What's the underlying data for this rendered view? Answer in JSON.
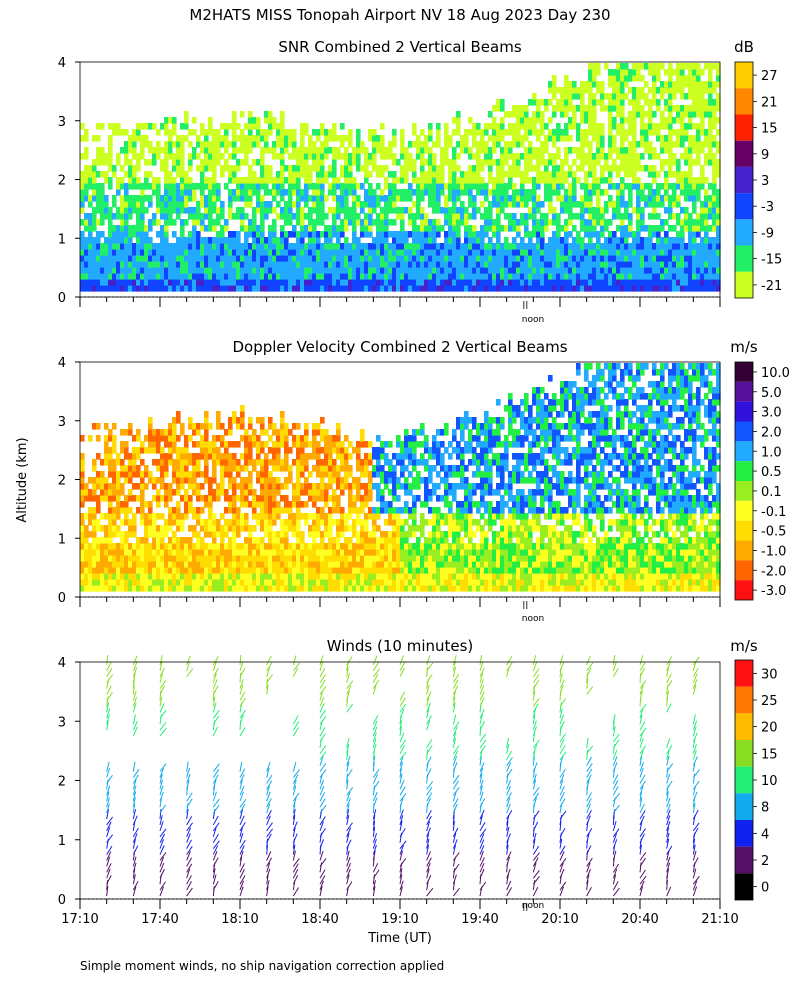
{
  "figure_title": "M2HATS MISS Tonopah Airport NV  18 Aug 2023 Day 230",
  "shared_ylabel": "Altitude (km)",
  "noon_label": "noon",
  "footer": "Simple moment winds, no ship navigation correction applied",
  "chart_data": [
    {
      "type": "heatmap",
      "title": "SNR Combined 2 Vertical Beams",
      "xlabel": "",
      "ylabel": "Altitude (km)",
      "xlim": [
        "17:10",
        "21:10"
      ],
      "ylim": [
        0,
        4
      ],
      "yticks": [
        0,
        1,
        2,
        3,
        4
      ],
      "noon_marker": "19:57",
      "colorbar": {
        "units": "dB",
        "labels": [
          "27",
          "21",
          "15",
          "9",
          "3",
          "-3",
          "-9",
          "-15",
          "-21"
        ],
        "colors": [
          "#ffcc00",
          "#ff8800",
          "#ff2200",
          "#660066",
          "#4422cc",
          "#1144ff",
          "#22aaff",
          "#22ee66",
          "#ccff22"
        ]
      },
      "description_bands": [
        {
          "altitude_km": [
            0.1,
            0.4
          ],
          "value_db": -3
        },
        {
          "altitude_km": [
            0.4,
            1.2
          ],
          "value_db": -9
        },
        {
          "altitude_km": [
            1.2,
            2.0
          ],
          "value_db": -15
        },
        {
          "altitude_km": [
            2.0,
            4.0
          ],
          "value_db": -21
        }
      ]
    },
    {
      "type": "heatmap",
      "title": "Doppler Velocity Combined 2 Vertical Beams",
      "xlabel": "",
      "ylabel": "Altitude (km)",
      "xlim": [
        "17:10",
        "21:10"
      ],
      "ylim": [
        0,
        4
      ],
      "yticks": [
        0,
        1,
        2,
        3,
        4
      ],
      "noon_marker": "19:57",
      "colorbar": {
        "units": "m/s",
        "labels": [
          "10.0",
          "5.0",
          "3.0",
          "2.0",
          "1.0",
          "0.5",
          "0.1",
          "-0.1",
          "-0.5",
          "-1.0",
          "-2.0",
          "-3.0"
        ],
        "colors": [
          "#330033",
          "#551199",
          "#3311dd",
          "#1155ff",
          "#22aaff",
          "#22ee44",
          "#99ee22",
          "#ffff22",
          "#ffdd00",
          "#ffaa00",
          "#ff6600",
          "#ff1111"
        ]
      }
    },
    {
      "type": "scatter",
      "title": "Winds (10 minutes)",
      "xlabel": "Time (UT)",
      "ylabel": "Altitude (km)",
      "xlim": [
        "17:10",
        "21:10"
      ],
      "ylim": [
        0,
        4
      ],
      "xticks": [
        "17:10",
        "17:40",
        "18:10",
        "18:40",
        "19:10",
        "19:40",
        "20:10",
        "20:40",
        "21:10"
      ],
      "yticks": [
        0,
        1,
        2,
        3,
        4
      ],
      "noon_marker": "19:57",
      "profile_times": [
        "17:20",
        "17:30",
        "17:40",
        "17:50",
        "18:00",
        "18:10",
        "18:20",
        "18:30",
        "18:40",
        "18:50",
        "19:00",
        "19:10",
        "19:20",
        "19:30",
        "19:40",
        "19:50",
        "20:00",
        "20:10",
        "20:20",
        "20:30",
        "20:40",
        "20:50",
        "21:00"
      ],
      "colorbar": {
        "units": "m/s",
        "labels": [
          "30",
          "25",
          "20",
          "15",
          "10",
          "8",
          "4",
          "2",
          "0"
        ],
        "colors": [
          "#ff1111",
          "#ff7700",
          "#ffbb00",
          "#88dd22",
          "#22ee77",
          "#11aaee",
          "#1122ee",
          "#551166",
          "#000000"
        ]
      }
    }
  ]
}
